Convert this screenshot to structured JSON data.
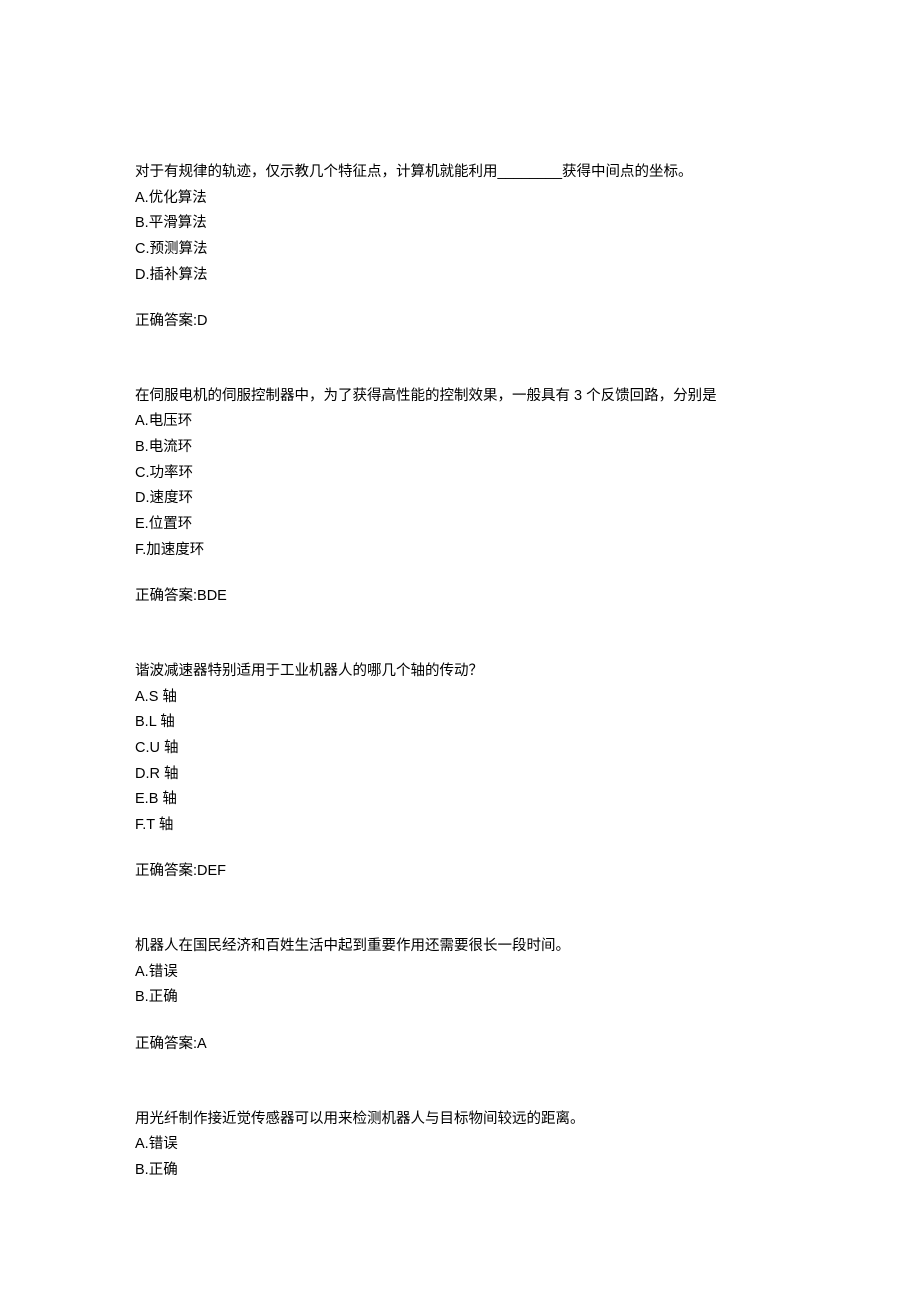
{
  "questions": [
    {
      "stem": "对于有规律的轨迹，仅示教几个特征点，计算机就能利用________获得中间点的坐标。",
      "options": [
        "A.优化算法",
        "B.平滑算法",
        "C.预测算法",
        "D.插补算法"
      ],
      "answer": "正确答案:D"
    },
    {
      "stem": "在伺服电机的伺服控制器中，为了获得高性能的控制效果，一般具有 3 个反馈回路，分别是",
      "options": [
        "A.电压环",
        "B.电流环",
        "C.功率环",
        "D.速度环",
        "E.位置环",
        "F.加速度环"
      ],
      "answer": "正确答案:BDE"
    },
    {
      "stem": "谐波减速器特别适用于工业机器人的哪几个轴的传动？",
      "options": [
        "A.S 轴",
        "B.L 轴",
        "C.U 轴",
        "D.R 轴",
        "E.B 轴",
        "F.T 轴"
      ],
      "answer": "正确答案:DEF"
    },
    {
      "stem": "机器人在国民经济和百姓生活中起到重要作用还需要很长一段时间。",
      "options": [
        "A.错误",
        "B.正确"
      ],
      "answer": "正确答案:A"
    },
    {
      "stem": "用光纤制作接近觉传感器可以用来检测机器人与目标物间较远的距离。",
      "options": [
        "A.错误",
        "B.正确"
      ],
      "answer": ""
    }
  ]
}
